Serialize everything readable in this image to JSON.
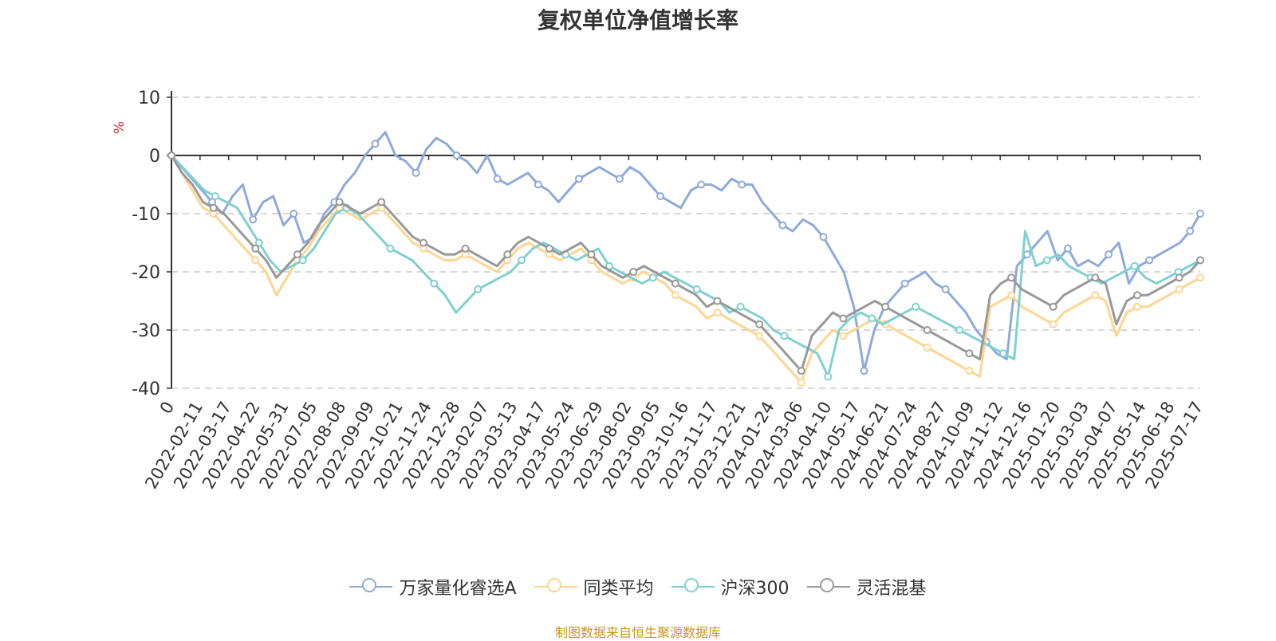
{
  "chart_data": {
    "type": "line",
    "title": "复权单位净值增长率",
    "ylabel": "%",
    "ylim": [
      -40,
      10
    ],
    "yticks": [
      "10",
      "0",
      "-10",
      "-20",
      "-30",
      "-40"
    ],
    "xticks": [
      "0",
      "2022-02-11",
      "2022-03-17",
      "2022-04-22",
      "2022-05-31",
      "2022-07-05",
      "2022-08-08",
      "2022-09-09",
      "2022-10-21",
      "2022-11-24",
      "2022-12-28",
      "2023-02-07",
      "2023-03-13",
      "2023-04-17",
      "2023-05-24",
      "2023-06-29",
      "2023-08-02",
      "2023-09-05",
      "2023-10-16",
      "2023-11-17",
      "2023-12-21",
      "2024-01-24",
      "2024-03-06",
      "2024-04-10",
      "2024-05-17",
      "2024-06-21",
      "2024-07-24",
      "2024-08-27",
      "2024-10-09",
      "2024-11-12",
      "2024-12-16",
      "2025-01-20",
      "2025-03-03",
      "2025-04-07",
      "2025-05-14",
      "2025-06-18",
      "2025-07-17"
    ],
    "grid": "dashed horizontal",
    "legend_position": "bottom",
    "source": "制图数据来自恒生聚源数据库",
    "series": [
      {
        "name": "万家量化睿选A",
        "color": "#8eaadb",
        "values": [
          0,
          -2,
          -4,
          -6,
          -8,
          -10,
          -7,
          -5,
          -11,
          -8,
          -7,
          -12,
          -10,
          -15,
          -14,
          -10,
          -8,
          -5,
          -3,
          0,
          2,
          4,
          0,
          -1,
          -3,
          1,
          3,
          2,
          0,
          -1,
          -3,
          0,
          -4,
          -5,
          -4,
          -3,
          -5,
          -6,
          -8,
          -6,
          -4,
          -3,
          -2,
          -3,
          -4,
          -2,
          -3,
          -5,
          -7,
          -8,
          -9,
          -6,
          -5,
          -5,
          -6,
          -4,
          -5,
          -5,
          -8,
          -10,
          -12,
          -13,
          -11,
          -12,
          -14,
          -17,
          -20,
          -26,
          -37,
          -30,
          -26,
          -24,
          -22,
          -21,
          -20,
          -22,
          -23,
          -25,
          -27,
          -30,
          -32,
          -34,
          -35,
          -19,
          -17,
          -15,
          -13,
          -18,
          -16,
          -19,
          -18,
          -19,
          -17,
          -15,
          -22,
          -19,
          -18,
          -17,
          -16,
          -15,
          -13,
          -10
        ]
      },
      {
        "name": "同类平均",
        "color": "#ffd591",
        "values": [
          0,
          -3,
          -6,
          -9,
          -10,
          -12,
          -14,
          -16,
          -18,
          -20,
          -24,
          -21,
          -18,
          -16,
          -13,
          -11,
          -9,
          -10,
          -11,
          -10,
          -9,
          -11,
          -13,
          -15,
          -16,
          -17,
          -18,
          -18,
          -17,
          -18,
          -19,
          -20,
          -18,
          -16,
          -15,
          -16,
          -17,
          -18,
          -17,
          -16,
          -18,
          -20,
          -21,
          -22,
          -21,
          -20,
          -21,
          -22,
          -24,
          -25,
          -26,
          -28,
          -27,
          -28,
          -29,
          -30,
          -31,
          -33,
          -35,
          -37,
          -39,
          -34,
          -32,
          -30,
          -31,
          -30,
          -29,
          -28,
          -29,
          -30,
          -31,
          -32,
          -33,
          -34,
          -35,
          -36,
          -37,
          -38,
          -26,
          -25,
          -24,
          -26,
          -27,
          -28,
          -29,
          -27,
          -26,
          -25,
          -24,
          -25,
          -31,
          -27,
          -26,
          -26,
          -25,
          -24,
          -23,
          -22,
          -21
        ]
      },
      {
        "name": "沪深300",
        "color": "#7fd1d1",
        "values": [
          0,
          -2,
          -4,
          -6,
          -7,
          -8,
          -9,
          -12,
          -15,
          -18,
          -20,
          -19,
          -18,
          -16,
          -13,
          -10,
          -9,
          -10,
          -12,
          -14,
          -16,
          -17,
          -18,
          -20,
          -22,
          -24,
          -27,
          -25,
          -23,
          -22,
          -21,
          -20,
          -18,
          -16,
          -15,
          -16,
          -17,
          -18,
          -17,
          -16,
          -19,
          -20,
          -21,
          -22,
          -21,
          -20,
          -21,
          -22,
          -23,
          -24,
          -25,
          -27,
          -26,
          -27,
          -28,
          -30,
          -31,
          -32,
          -33,
          -34,
          -38,
          -30,
          -28,
          -27,
          -28,
          -29,
          -28,
          -27,
          -26,
          -27,
          -28,
          -29,
          -30,
          -31,
          -32,
          -33,
          -34,
          -35,
          -13,
          -19,
          -18,
          -17,
          -19,
          -20,
          -21,
          -22,
          -21,
          -20,
          -19,
          -21,
          -22,
          -21,
          -20,
          -19,
          -18
        ]
      },
      {
        "name": "灵活混基",
        "color": "#999999",
        "values": [
          0,
          -3,
          -5,
          -8,
          -9,
          -10,
          -12,
          -14,
          -16,
          -18,
          -21,
          -19,
          -17,
          -15,
          -12,
          -10,
          -8,
          -9,
          -10,
          -9,
          -8,
          -10,
          -12,
          -14,
          -15,
          -16,
          -17,
          -17,
          -16,
          -17,
          -18,
          -19,
          -17,
          -15,
          -14,
          -15,
          -16,
          -17,
          -16,
          -15,
          -17,
          -19,
          -20,
          -21,
          -20,
          -19,
          -20,
          -21,
          -22,
          -23,
          -24,
          -26,
          -25,
          -26,
          -27,
          -28,
          -29,
          -31,
          -33,
          -35,
          -37,
          -31,
          -29,
          -27,
          -28,
          -27,
          -26,
          -25,
          -26,
          -27,
          -28,
          -29,
          -30,
          -31,
          -32,
          -33,
          -34,
          -35,
          -24,
          -22,
          -21,
          -23,
          -24,
          -25,
          -26,
          -24,
          -23,
          -22,
          -21,
          -22,
          -29,
          -25,
          -24,
          -24,
          -23,
          -22,
          -21,
          -20,
          -18
        ]
      }
    ]
  }
}
